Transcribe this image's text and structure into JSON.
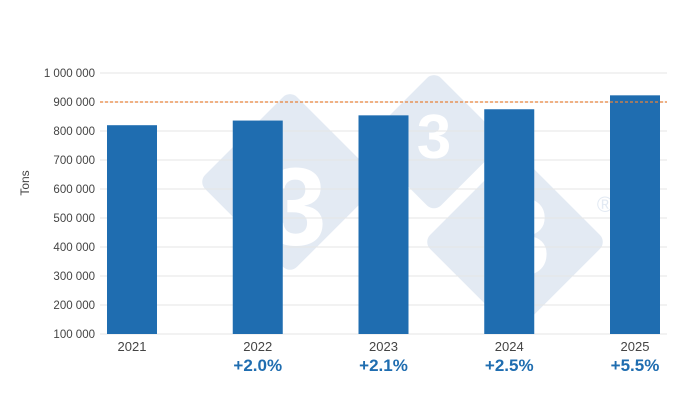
{
  "chart_data": {
    "type": "bar",
    "title": "",
    "xlabel": "",
    "ylabel": "Tons",
    "ylim": [
      100000,
      1000000
    ],
    "yticks": [
      100000,
      200000,
      300000,
      400000,
      500000,
      600000,
      700000,
      800000,
      900000,
      1000000
    ],
    "ytick_labels": [
      "100 000",
      "200 000",
      "300 000",
      "400 000",
      "500 000",
      "600 000",
      "700 000",
      "800 000",
      "900 000",
      "1 000 000"
    ],
    "grid": true,
    "categories": [
      "2021",
      "2022",
      "2023",
      "2024",
      "2025"
    ],
    "values": [
      820000,
      836000,
      854000,
      875000,
      923000
    ],
    "annotations": [
      "",
      "+2.0%",
      "+2.1%",
      "+2.5%",
      "+5.5%"
    ],
    "reference_line": {
      "value": 900000,
      "style": "dashed",
      "color": "#e8823a"
    },
    "legend": null,
    "colors": {
      "bar": "#1f6db0",
      "annotation": "#1f6db0",
      "grid": "#e6e6e6",
      "axis_text": "#444444"
    }
  },
  "watermark": {
    "glyph": "3",
    "registered": "®"
  }
}
